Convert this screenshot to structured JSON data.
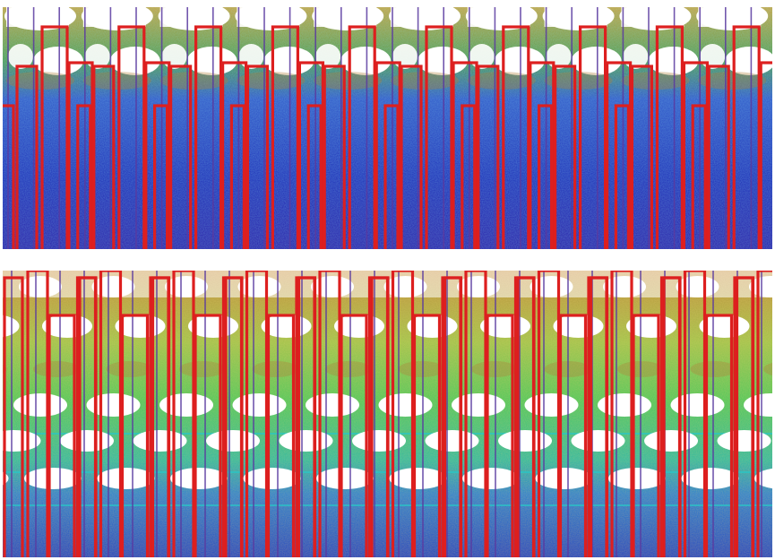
{
  "image": {
    "description_kind": "false-color flow visualization strips",
    "palette": {
      "deep": "#1a1ab4",
      "mid": "#2a66d8",
      "cyan": "#29c7c7",
      "green": "#6fcf3a",
      "yellow": "#d9c23a",
      "brown": "#b3813a",
      "void": "#ffffff",
      "frame": "#dd1f1f",
      "divider": "#5a3aa0"
    }
  }
}
